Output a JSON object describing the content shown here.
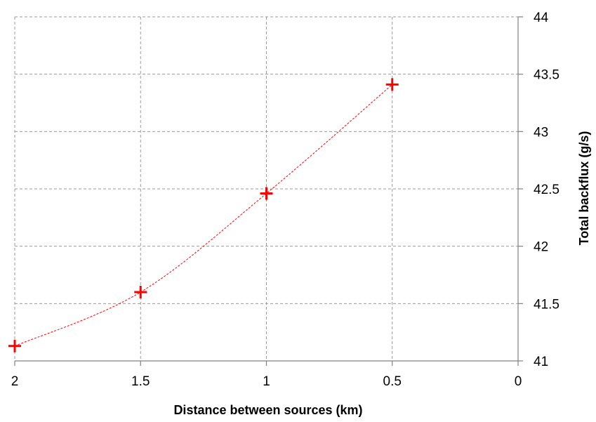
{
  "chart_data": {
    "type": "scatter",
    "title": "",
    "xlabel": "Distance between sources (km)",
    "ylabel": "Total backflux (g/s)",
    "x_reversed": true,
    "xlim": [
      0,
      2
    ],
    "ylim": [
      41,
      44
    ],
    "x_ticks": [
      "2",
      "1.5",
      "1",
      "0.5",
      "0"
    ],
    "y_ticks": [
      "41",
      "41.5",
      "42",
      "42.5",
      "43",
      "43.5",
      "44"
    ],
    "grid": true,
    "y_axis_position": "right",
    "marker": "plus",
    "trendline": true,
    "colors": {
      "series": "#ff0000",
      "grid": "#999999",
      "axis": "#808080"
    },
    "series": [
      {
        "x": [
          2,
          1.5,
          1,
          0.5
        ],
        "y": [
          41.13,
          41.6,
          42.46,
          43.41
        ]
      }
    ]
  }
}
